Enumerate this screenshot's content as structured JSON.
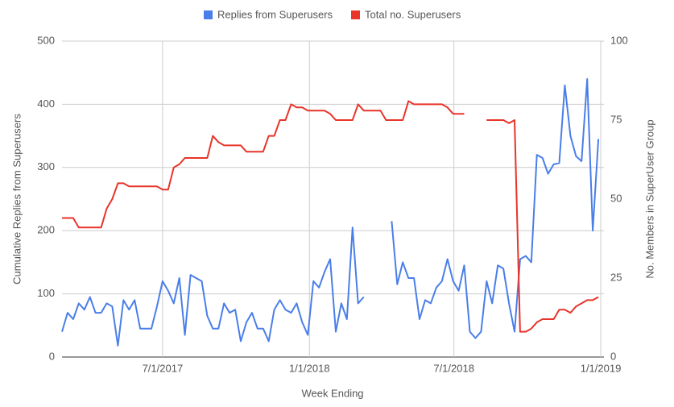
{
  "chart_data": {
    "type": "line",
    "legend_position": "top",
    "xlabel": "Week Ending",
    "ylabel": "Cumulative Replies from Superusers",
    "y2label": "No. Members in SuperUser Group",
    "x": [
      "2/25/2017",
      "3/4/2017",
      "3/11/2017",
      "3/18/2017",
      "3/25/2017",
      "4/1/2017",
      "4/8/2017",
      "4/15/2017",
      "4/22/2017",
      "4/29/2017",
      "5/6/2017",
      "5/13/2017",
      "5/20/2017",
      "5/27/2017",
      "6/3/2017",
      "6/10/2017",
      "6/17/2017",
      "6/24/2017",
      "7/1/2017",
      "7/8/2017",
      "7/15/2017",
      "7/22/2017",
      "7/29/2017",
      "8/5/2017",
      "8/12/2017",
      "8/19/2017",
      "8/26/2017",
      "9/2/2017",
      "9/9/2017",
      "9/16/2017",
      "9/23/2017",
      "9/30/2017",
      "10/7/2017",
      "10/14/2017",
      "10/21/2017",
      "10/28/2017",
      "11/4/2017",
      "11/11/2017",
      "11/18/2017",
      "11/25/2017",
      "12/2/2017",
      "12/9/2017",
      "12/16/2017",
      "12/23/2017",
      "12/30/2017",
      "1/6/2018",
      "1/13/2018",
      "1/20/2018",
      "1/27/2018",
      "2/3/2018",
      "2/10/2018",
      "2/17/2018",
      "2/24/2018",
      "3/3/2018",
      "3/10/2018",
      "3/17/2018",
      "3/24/2018",
      "3/31/2018",
      "4/7/2018",
      "4/14/2018",
      "4/21/2018",
      "4/28/2018",
      "5/5/2018",
      "5/12/2018",
      "5/19/2018",
      "5/26/2018",
      "6/2/2018",
      "6/9/2018",
      "6/16/2018",
      "6/23/2018",
      "6/30/2018",
      "7/7/2018",
      "7/14/2018",
      "7/21/2018",
      "7/28/2018",
      "8/4/2018",
      "8/11/2018",
      "8/18/2018",
      "8/25/2018",
      "9/1/2018",
      "9/8/2018",
      "9/15/2018",
      "9/22/2018",
      "9/29/2018",
      "10/6/2018",
      "10/13/2018",
      "10/20/2018",
      "10/27/2018",
      "11/3/2018",
      "11/10/2018",
      "11/17/2018",
      "11/24/2018",
      "12/1/2018",
      "12/8/2018",
      "12/15/2018",
      "12/22/2018",
      "12/29/2018"
    ],
    "xlim": [
      "2/25/2017",
      "1/5/2019"
    ],
    "xticks": [
      "7/1/2017",
      "1/1/2018",
      "7/1/2018",
      "1/1/2019"
    ],
    "ylim": [
      0,
      500
    ],
    "yticks": [
      0,
      100,
      200,
      300,
      400,
      500
    ],
    "y2lim": [
      0,
      100
    ],
    "y2ticks": [
      0,
      25,
      50,
      75,
      100
    ],
    "grid": true,
    "series": [
      {
        "name": "Replies from Superusers",
        "color": "#4a7ee8",
        "values": [
          40,
          70,
          60,
          85,
          75,
          95,
          70,
          70,
          85,
          80,
          18,
          90,
          75,
          90,
          45,
          45,
          45,
          80,
          120,
          105,
          85,
          125,
          35,
          130,
          125,
          120,
          65,
          45,
          45,
          85,
          70,
          75,
          25,
          55,
          70,
          45,
          45,
          25,
          75,
          90,
          75,
          70,
          85,
          55,
          35,
          120,
          110,
          135,
          155,
          40,
          85,
          60,
          205,
          85,
          95,
          null,
          null,
          null,
          null,
          215,
          115,
          150,
          125,
          125,
          60,
          90,
          85,
          110,
          120,
          155,
          120,
          105,
          145,
          40,
          30,
          40,
          120,
          85,
          145,
          140,
          85,
          40,
          155,
          160,
          150,
          320,
          315,
          290,
          305,
          307,
          430,
          350,
          318,
          310,
          440,
          200,
          345
        ]
      },
      {
        "name": "Total no. Superusers",
        "color": "#e8342a",
        "axis": "y2",
        "values": [
          44,
          44,
          44,
          41,
          41,
          41,
          41,
          41,
          47,
          50,
          55,
          55,
          54,
          54,
          54,
          54,
          54,
          54,
          53,
          53,
          60,
          61,
          63,
          63,
          63,
          63,
          63,
          70,
          68,
          67,
          67,
          67,
          67,
          65,
          65,
          65,
          65,
          70,
          70,
          75,
          75,
          80,
          79,
          79,
          78,
          78,
          78,
          78,
          77,
          75,
          75,
          75,
          75,
          80,
          78,
          78,
          78,
          78,
          75,
          75,
          75,
          75,
          81,
          80,
          80,
          80,
          80,
          80,
          80,
          79,
          77,
          77,
          77,
          null,
          null,
          null,
          75,
          75,
          75,
          75,
          74,
          75,
          8,
          8,
          9,
          11,
          12,
          12,
          12,
          15,
          15,
          14,
          16,
          17,
          18,
          18,
          19
        ]
      }
    ]
  }
}
